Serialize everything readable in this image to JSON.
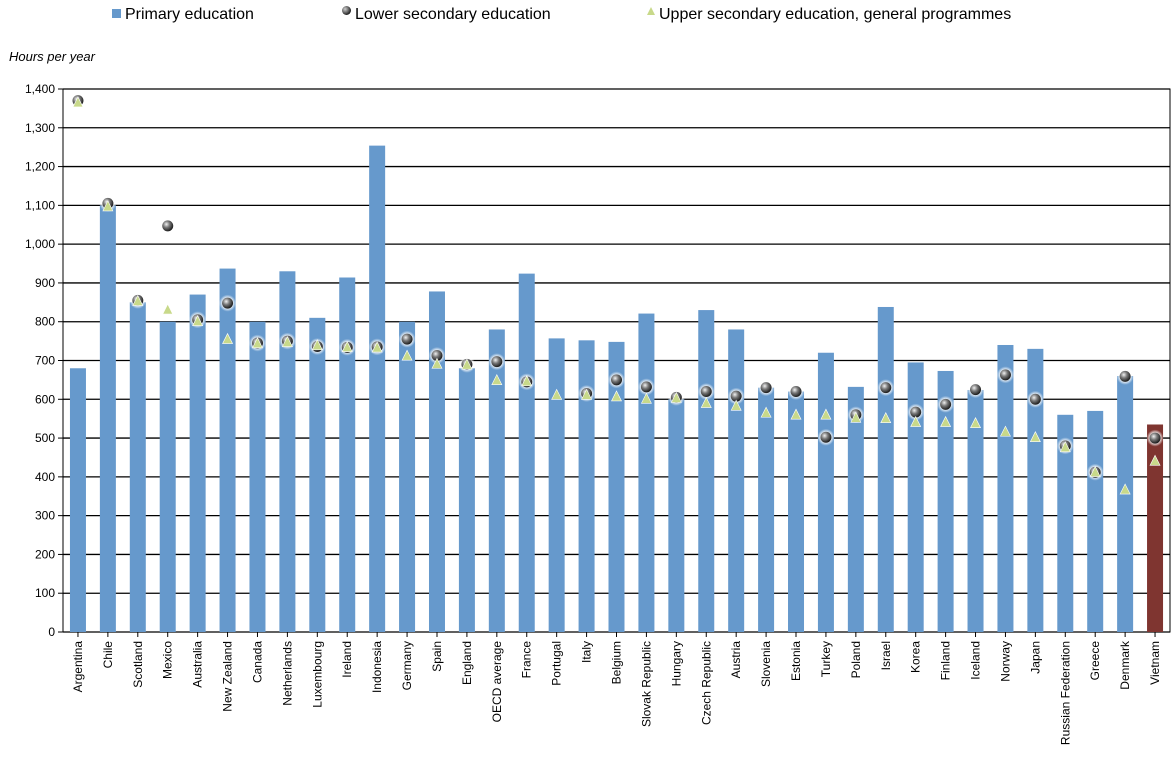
{
  "legend": {
    "primary": "Primary education",
    "lower": "Lower secondary education",
    "upper": "Upper secondary education, general programmes"
  },
  "colors": {
    "primary_bar": "#6699cc",
    "highlight_bar": "#7f3530",
    "lower_marker": "#3a3a3a",
    "upper_marker": "#c8d98a"
  },
  "chart_data": {
    "type": "bar",
    "ylabel": "Hours per year",
    "xlabel": "",
    "ylim": [
      0,
      1400
    ],
    "yticks": [
      "0",
      "100",
      "200",
      "300",
      "400",
      "500",
      "600",
      "700",
      "800",
      "900",
      "1,000",
      "1,100",
      "1,200",
      "1,300",
      "1,400"
    ],
    "grid": true,
    "legend_position": "top",
    "highlight_category": "Vietnam",
    "categories": [
      "Argentina",
      "Chile",
      "Scotland",
      "Mexico",
      "Australia",
      "New Zealand",
      "Canada",
      "Netherlands",
      "Luxembourg",
      "Ireland",
      "Indonesia",
      "Germany",
      "Spain",
      "England",
      "OECD average",
      "France",
      "Portugal",
      "Italy",
      "Belgium",
      "Slovak Republic",
      "Hungary",
      "Czech Republic",
      "Austria",
      "Slovenia",
      "Estonia",
      "Turkey",
      "Poland",
      "Israel",
      "Korea",
      "Finland",
      "Iceland",
      "Norway",
      "Japan",
      "Russian Federation",
      "Greece",
      "Denmark",
      "Vietnam"
    ],
    "series": [
      {
        "name": "Primary education",
        "kind": "bar",
        "values": [
          680,
          1100,
          850,
          800,
          870,
          937,
          800,
          930,
          810,
          914,
          1254,
          800,
          878,
          680,
          780,
          924,
          757,
          752,
          748,
          821,
          600,
          830,
          780,
          630,
          620,
          720,
          632,
          838,
          695,
          673,
          624,
          740,
          730,
          560,
          570,
          660,
          535
        ]
      },
      {
        "name": "Lower secondary education",
        "kind": "marker",
        "values": [
          1370,
          1105,
          855,
          1047,
          805,
          848,
          745,
          750,
          736,
          734,
          735,
          755,
          713,
          690,
          697,
          645,
          null,
          615,
          650,
          632,
          605,
          620,
          608,
          630,
          620,
          502,
          560,
          630,
          567,
          587,
          625,
          663,
          600,
          480,
          412,
          659,
          500
        ]
      },
      {
        "name": "Upper secondary education, general programmes",
        "kind": "marker",
        "values": [
          1364,
          1096,
          852,
          830,
          800,
          754,
          743,
          746,
          738,
          733,
          732,
          711,
          690,
          688,
          648,
          645,
          610,
          610,
          606,
          600,
          602,
          589,
          582,
          564,
          559,
          559,
          551,
          550,
          540,
          540,
          537,
          515,
          501,
          475,
          411,
          366,
          440
        ]
      }
    ]
  }
}
